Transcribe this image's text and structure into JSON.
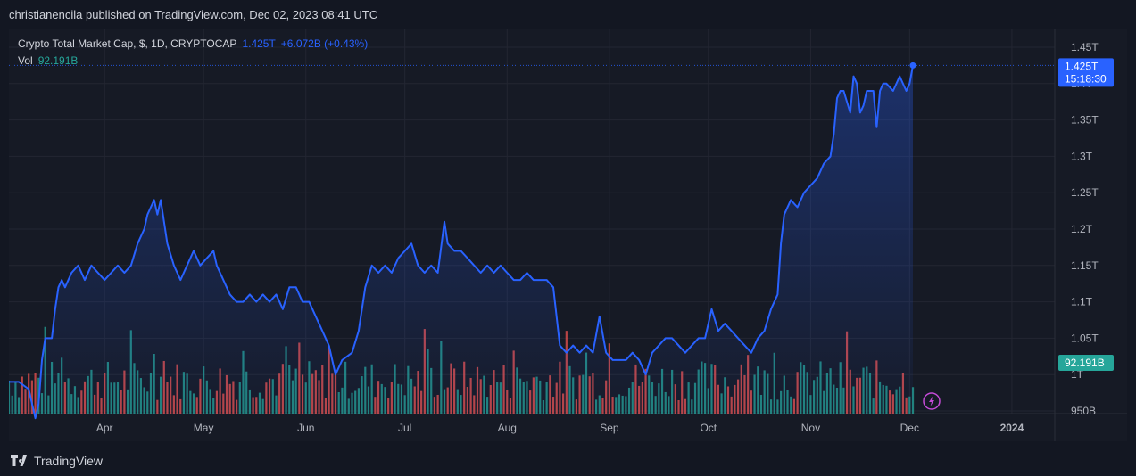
{
  "header": {
    "published_text": "christianencila published on TradingView.com, Dec 02, 2023 08:41 UTC"
  },
  "legend": {
    "name": "Crypto Total Market Cap, $, 1D, CRYPTOCAP",
    "value": "1.425T",
    "change": "+6.072B (+0.43%)",
    "vol_label": "Vol",
    "vol_value": "92.191B"
  },
  "price_badge": {
    "value": "1.425T",
    "countdown": "15:18:30"
  },
  "volume_badge": {
    "value": "92.191B"
  },
  "footer": {
    "brand": "TradingView"
  },
  "colors": {
    "line": "#2962ff",
    "up_volume": "#26a69a",
    "down_volume": "#ef5350",
    "background": "#161a25",
    "grid": "#232632"
  },
  "chart_data": {
    "type": "line",
    "title": "Crypto Total Market Cap, $, 1D, CRYPTOCAP",
    "y_axis": {
      "ticks": [
        "1.45T",
        "1.4T",
        "1.35T",
        "1.3T",
        "1.25T",
        "1.2T",
        "1.15T",
        "1.1T",
        "1.05T",
        "1T",
        "950B"
      ],
      "tick_values": [
        1.45,
        1.4,
        1.35,
        1.3,
        1.25,
        1.2,
        1.15,
        1.1,
        1.05,
        1.0,
        0.95
      ],
      "range": [
        0.95,
        1.45
      ],
      "unit": "T"
    },
    "x_axis": {
      "labels": [
        "Apr",
        "May",
        "Jun",
        "Jul",
        "Aug",
        "Sep",
        "Oct",
        "Nov",
        "Dec",
        "2024"
      ],
      "label_dates": [
        "2023-04-01",
        "2023-05-01",
        "2023-06-01",
        "2023-07-01",
        "2023-08-01",
        "2023-09-01",
        "2023-10-01",
        "2023-11-01",
        "2023-12-01",
        "2024-01-01"
      ],
      "range": [
        "2023-03-03",
        "2024-01-14"
      ]
    },
    "grid": true,
    "series": [
      {
        "name": "Crypto Total Market Cap",
        "points": [
          [
            "2023-03-03",
            0.99
          ],
          [
            "2023-03-06",
            0.99
          ],
          [
            "2023-03-09",
            0.98
          ],
          [
            "2023-03-11",
            0.94
          ],
          [
            "2023-03-12",
            0.96
          ],
          [
            "2023-03-13",
            1.02
          ],
          [
            "2023-03-14",
            1.05
          ],
          [
            "2023-03-15",
            1.05
          ],
          [
            "2023-03-16",
            1.05
          ],
          [
            "2023-03-17",
            1.09
          ],
          [
            "2023-03-18",
            1.12
          ],
          [
            "2023-03-19",
            1.13
          ],
          [
            "2023-03-20",
            1.12
          ],
          [
            "2023-03-22",
            1.14
          ],
          [
            "2023-03-24",
            1.15
          ],
          [
            "2023-03-26",
            1.13
          ],
          [
            "2023-03-28",
            1.15
          ],
          [
            "2023-03-30",
            1.14
          ],
          [
            "2023-04-01",
            1.13
          ],
          [
            "2023-04-03",
            1.14
          ],
          [
            "2023-04-05",
            1.15
          ],
          [
            "2023-04-07",
            1.14
          ],
          [
            "2023-04-09",
            1.15
          ],
          [
            "2023-04-11",
            1.18
          ],
          [
            "2023-04-13",
            1.2
          ],
          [
            "2023-04-14",
            1.22
          ],
          [
            "2023-04-15",
            1.23
          ],
          [
            "2023-04-16",
            1.24
          ],
          [
            "2023-04-17",
            1.22
          ],
          [
            "2023-04-18",
            1.24
          ],
          [
            "2023-04-19",
            1.21
          ],
          [
            "2023-04-20",
            1.18
          ],
          [
            "2023-04-22",
            1.15
          ],
          [
            "2023-04-24",
            1.13
          ],
          [
            "2023-04-26",
            1.15
          ],
          [
            "2023-04-28",
            1.17
          ],
          [
            "2023-04-30",
            1.15
          ],
          [
            "2023-05-02",
            1.16
          ],
          [
            "2023-05-04",
            1.17
          ],
          [
            "2023-05-05",
            1.15
          ],
          [
            "2023-05-07",
            1.13
          ],
          [
            "2023-05-09",
            1.11
          ],
          [
            "2023-05-11",
            1.1
          ],
          [
            "2023-05-13",
            1.1
          ],
          [
            "2023-05-15",
            1.11
          ],
          [
            "2023-05-17",
            1.1
          ],
          [
            "2023-05-19",
            1.11
          ],
          [
            "2023-05-21",
            1.1
          ],
          [
            "2023-05-23",
            1.11
          ],
          [
            "2023-05-25",
            1.09
          ],
          [
            "2023-05-27",
            1.12
          ],
          [
            "2023-05-29",
            1.12
          ],
          [
            "2023-05-31",
            1.1
          ],
          [
            "2023-06-02",
            1.1
          ],
          [
            "2023-06-04",
            1.08
          ],
          [
            "2023-06-06",
            1.06
          ],
          [
            "2023-06-08",
            1.04
          ],
          [
            "2023-06-10",
            1.0
          ],
          [
            "2023-06-12",
            1.02
          ],
          [
            "2023-06-15",
            1.03
          ],
          [
            "2023-06-17",
            1.06
          ],
          [
            "2023-06-19",
            1.12
          ],
          [
            "2023-06-21",
            1.15
          ],
          [
            "2023-06-23",
            1.14
          ],
          [
            "2023-06-25",
            1.15
          ],
          [
            "2023-06-27",
            1.14
          ],
          [
            "2023-06-29",
            1.16
          ],
          [
            "2023-07-01",
            1.17
          ],
          [
            "2023-07-03",
            1.18
          ],
          [
            "2023-07-05",
            1.15
          ],
          [
            "2023-07-07",
            1.14
          ],
          [
            "2023-07-09",
            1.15
          ],
          [
            "2023-07-11",
            1.14
          ],
          [
            "2023-07-13",
            1.21
          ],
          [
            "2023-07-14",
            1.18
          ],
          [
            "2023-07-16",
            1.17
          ],
          [
            "2023-07-18",
            1.17
          ],
          [
            "2023-07-20",
            1.16
          ],
          [
            "2023-07-22",
            1.15
          ],
          [
            "2023-07-24",
            1.14
          ],
          [
            "2023-07-26",
            1.15
          ],
          [
            "2023-07-28",
            1.14
          ],
          [
            "2023-07-30",
            1.15
          ],
          [
            "2023-08-01",
            1.14
          ],
          [
            "2023-08-03",
            1.13
          ],
          [
            "2023-08-05",
            1.13
          ],
          [
            "2023-08-07",
            1.14
          ],
          [
            "2023-08-09",
            1.13
          ],
          [
            "2023-08-11",
            1.13
          ],
          [
            "2023-08-13",
            1.13
          ],
          [
            "2023-08-15",
            1.12
          ],
          [
            "2023-08-17",
            1.04
          ],
          [
            "2023-08-19",
            1.03
          ],
          [
            "2023-08-21",
            1.04
          ],
          [
            "2023-08-23",
            1.03
          ],
          [
            "2023-08-25",
            1.04
          ],
          [
            "2023-08-27",
            1.03
          ],
          [
            "2023-08-29",
            1.08
          ],
          [
            "2023-08-31",
            1.03
          ],
          [
            "2023-09-02",
            1.02
          ],
          [
            "2023-09-04",
            1.02
          ],
          [
            "2023-09-06",
            1.02
          ],
          [
            "2023-09-08",
            1.03
          ],
          [
            "2023-09-10",
            1.02
          ],
          [
            "2023-09-12",
            1.0
          ],
          [
            "2023-09-14",
            1.03
          ],
          [
            "2023-09-16",
            1.04
          ],
          [
            "2023-09-18",
            1.05
          ],
          [
            "2023-09-20",
            1.05
          ],
          [
            "2023-09-22",
            1.04
          ],
          [
            "2023-09-24",
            1.03
          ],
          [
            "2023-09-26",
            1.04
          ],
          [
            "2023-09-28",
            1.05
          ],
          [
            "2023-09-30",
            1.05
          ],
          [
            "2023-10-02",
            1.09
          ],
          [
            "2023-10-04",
            1.06
          ],
          [
            "2023-10-06",
            1.07
          ],
          [
            "2023-10-08",
            1.06
          ],
          [
            "2023-10-10",
            1.05
          ],
          [
            "2023-10-12",
            1.04
          ],
          [
            "2023-10-14",
            1.03
          ],
          [
            "2023-10-16",
            1.05
          ],
          [
            "2023-10-18",
            1.06
          ],
          [
            "2023-10-20",
            1.09
          ],
          [
            "2023-10-22",
            1.11
          ],
          [
            "2023-10-23",
            1.18
          ],
          [
            "2023-10-24",
            1.22
          ],
          [
            "2023-10-26",
            1.24
          ],
          [
            "2023-10-28",
            1.23
          ],
          [
            "2023-10-30",
            1.25
          ],
          [
            "2023-11-01",
            1.26
          ],
          [
            "2023-11-03",
            1.27
          ],
          [
            "2023-11-05",
            1.29
          ],
          [
            "2023-11-07",
            1.3
          ],
          [
            "2023-11-08",
            1.33
          ],
          [
            "2023-11-09",
            1.38
          ],
          [
            "2023-11-10",
            1.39
          ],
          [
            "2023-11-11",
            1.39
          ],
          [
            "2023-11-13",
            1.36
          ],
          [
            "2023-11-14",
            1.41
          ],
          [
            "2023-11-15",
            1.4
          ],
          [
            "2023-11-16",
            1.36
          ],
          [
            "2023-11-17",
            1.37
          ],
          [
            "2023-11-18",
            1.39
          ],
          [
            "2023-11-20",
            1.39
          ],
          [
            "2023-11-21",
            1.34
          ],
          [
            "2023-11-22",
            1.39
          ],
          [
            "2023-11-23",
            1.4
          ],
          [
            "2023-11-24",
            1.4
          ],
          [
            "2023-11-26",
            1.39
          ],
          [
            "2023-11-28",
            1.41
          ],
          [
            "2023-11-30",
            1.39
          ],
          [
            "2023-12-01",
            1.4
          ],
          [
            "2023-12-02",
            1.425
          ]
        ]
      }
    ],
    "volume": {
      "label": "Vol",
      "last_value": "92.191B"
    }
  }
}
